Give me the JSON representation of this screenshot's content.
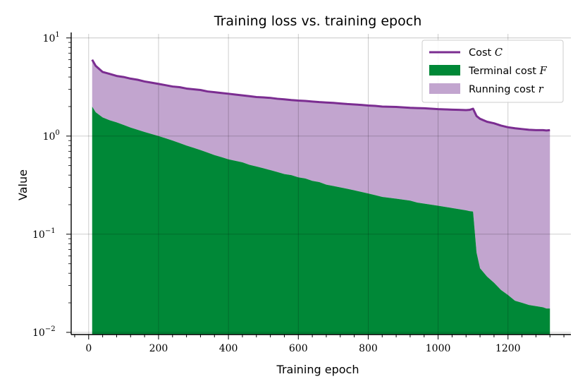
{
  "chart_data": {
    "type": "area",
    "title": "Training loss vs. training epoch",
    "xlabel": "Training epoch",
    "ylabel": "Value",
    "xlim": [
      -50,
      1380
    ],
    "ylim": [
      0.0095,
      11
    ],
    "yscale": "log",
    "grid": true,
    "legend_position": "top-right",
    "x_ticks": [
      {
        "value": 0,
        "label": "0"
      },
      {
        "value": 200,
        "label": "200"
      },
      {
        "value": 400,
        "label": "400"
      },
      {
        "value": 600,
        "label": "600"
      },
      {
        "value": 800,
        "label": "800"
      },
      {
        "value": 1000,
        "label": "1000"
      },
      {
        "value": 1200,
        "label": "1200"
      }
    ],
    "y_ticks": [
      {
        "value": 0.01,
        "base": "10",
        "exp": "−2"
      },
      {
        "value": 0.1,
        "base": "10",
        "exp": "−1"
      },
      {
        "value": 1,
        "base": "10",
        "exp": "0"
      },
      {
        "value": 10,
        "base": "10",
        "exp": "1"
      }
    ],
    "x": [
      10,
      20,
      40,
      60,
      80,
      100,
      120,
      140,
      160,
      180,
      200,
      220,
      240,
      260,
      280,
      300,
      320,
      340,
      360,
      380,
      400,
      420,
      440,
      460,
      480,
      500,
      520,
      540,
      560,
      580,
      600,
      620,
      640,
      660,
      680,
      700,
      720,
      740,
      760,
      780,
      800,
      820,
      840,
      860,
      880,
      900,
      920,
      940,
      960,
      980,
      1000,
      1020,
      1040,
      1060,
      1080,
      1090,
      1100,
      1110,
      1120,
      1140,
      1160,
      1180,
      1200,
      1220,
      1240,
      1260,
      1280,
      1300,
      1310,
      1320
    ],
    "series": [
      {
        "name": "Cost",
        "math": "C",
        "kind": "line",
        "color": "#7b2d91",
        "values": [
          6.0,
          5.2,
          4.5,
          4.3,
          4.1,
          4.0,
          3.85,
          3.75,
          3.6,
          3.5,
          3.4,
          3.3,
          3.2,
          3.15,
          3.05,
          3.0,
          2.95,
          2.85,
          2.8,
          2.75,
          2.7,
          2.65,
          2.6,
          2.55,
          2.5,
          2.48,
          2.45,
          2.4,
          2.37,
          2.33,
          2.3,
          2.28,
          2.25,
          2.22,
          2.2,
          2.18,
          2.15,
          2.12,
          2.1,
          2.08,
          2.05,
          2.03,
          2.0,
          1.99,
          1.98,
          1.96,
          1.94,
          1.93,
          1.92,
          1.9,
          1.88,
          1.87,
          1.86,
          1.85,
          1.84,
          1.85,
          1.9,
          1.6,
          1.5,
          1.4,
          1.35,
          1.28,
          1.23,
          1.2,
          1.18,
          1.16,
          1.15,
          1.15,
          1.14,
          1.15
        ]
      },
      {
        "name": "Terminal cost",
        "math": "F",
        "kind": "area",
        "color": "#008837",
        "values": [
          2.0,
          1.75,
          1.55,
          1.45,
          1.38,
          1.3,
          1.22,
          1.16,
          1.1,
          1.05,
          1.0,
          0.95,
          0.9,
          0.85,
          0.8,
          0.76,
          0.72,
          0.68,
          0.64,
          0.61,
          0.58,
          0.56,
          0.54,
          0.51,
          0.49,
          0.47,
          0.45,
          0.43,
          0.41,
          0.4,
          0.38,
          0.37,
          0.35,
          0.34,
          0.32,
          0.31,
          0.3,
          0.29,
          0.28,
          0.27,
          0.26,
          0.25,
          0.24,
          0.235,
          0.23,
          0.225,
          0.22,
          0.21,
          0.205,
          0.2,
          0.195,
          0.19,
          0.185,
          0.18,
          0.175,
          0.172,
          0.17,
          0.065,
          0.045,
          0.037,
          0.032,
          0.027,
          0.024,
          0.021,
          0.02,
          0.019,
          0.0185,
          0.018,
          0.0175,
          0.0175
        ]
      },
      {
        "name": "Running cost",
        "math": "r",
        "kind": "area",
        "color": "#c2a5cf"
      }
    ]
  }
}
